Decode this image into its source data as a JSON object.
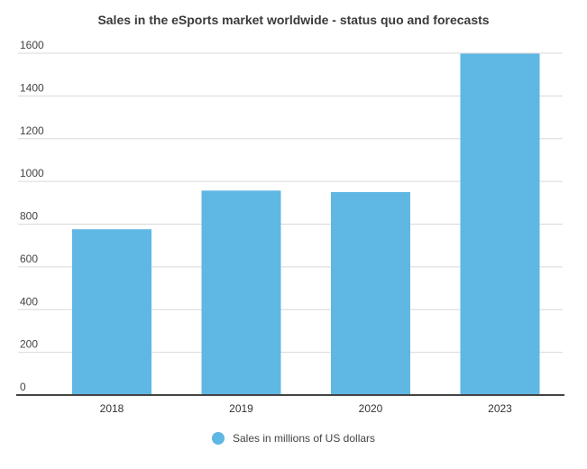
{
  "chart_data": {
    "type": "bar",
    "title": "Sales in the eSports market worldwide - status quo and forecasts",
    "categories": [
      "2018",
      "2019",
      "2020",
      "2023"
    ],
    "series": [
      {
        "name": "Sales in millions of US dollars",
        "values": [
          776,
          957,
          950,
          1598
        ]
      }
    ],
    "ylim": [
      0,
      1600
    ],
    "yticks": [
      0,
      200,
      400,
      600,
      800,
      1000,
      1200,
      1400,
      1600
    ],
    "grid": true,
    "legend_position": "bottom",
    "colors": {
      "bar": "#5fb7e4",
      "grid": "#d9d9d9",
      "axis": "#444444"
    }
  }
}
